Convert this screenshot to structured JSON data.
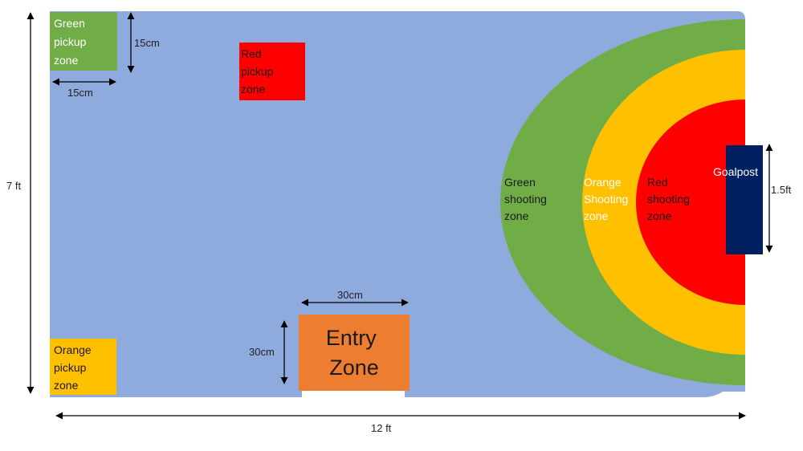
{
  "colors": {
    "field": "#8faadc",
    "green": "#70ad47",
    "orange": "#ffc000",
    "red": "#ff0000",
    "entry": "#ed7d31",
    "goalpost": "#002060",
    "dimension_line": "#000000"
  },
  "zones": {
    "green_pickup": {
      "line1": "Green",
      "line2": "pickup",
      "line3": "zone"
    },
    "red_pickup": {
      "line1": "Red",
      "line2": "pickup",
      "line3": "zone"
    },
    "orange_pickup": {
      "line1": "Orange",
      "line2": "pickup",
      "line3": "zone"
    },
    "entry": {
      "line1": "Entry",
      "line2": "Zone"
    },
    "green_shooting": {
      "line1": "Green",
      "line2": "shooting",
      "line3": "zone"
    },
    "orange_shooting": {
      "line1": "Orange",
      "line2": "Shooting",
      "line3": "zone"
    },
    "red_shooting": {
      "line1": "Red",
      "line2": "shooting",
      "line3": "zone"
    },
    "goalpost": {
      "label": "Goalpost"
    }
  },
  "dimensions": {
    "field_height": "7 ft",
    "field_width": "12 ft",
    "pickup_width": "15cm",
    "pickup_height": "15cm",
    "entry_width": "30cm",
    "entry_height": "30cm",
    "goalpost_height": "1.5ft"
  }
}
